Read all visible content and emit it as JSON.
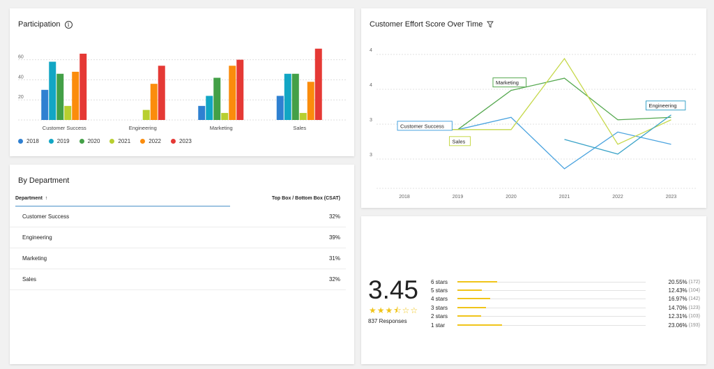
{
  "participation": {
    "title": "Participation",
    "info_icon": "info-icon",
    "chart_data": {
      "type": "bar",
      "categories": [
        "Customer Success",
        "Engineering",
        "Marketing",
        "Sales"
      ],
      "yticks": [
        20,
        40,
        60
      ],
      "ylim": [
        0,
        75
      ],
      "series": [
        {
          "name": "2018",
          "color": "#2f80d1",
          "values": [
            30,
            null,
            14,
            24
          ]
        },
        {
          "name": "2019",
          "color": "#12a6c4",
          "values": [
            58,
            null,
            24,
            46
          ]
        },
        {
          "name": "2020",
          "color": "#43a047",
          "values": [
            46,
            null,
            42,
            46
          ]
        },
        {
          "name": "2021",
          "color": "#b8cf2f",
          "values": [
            14,
            10,
            7,
            7
          ]
        },
        {
          "name": "2022",
          "color": "#fb8c0c",
          "values": [
            48,
            36,
            54,
            38
          ]
        },
        {
          "name": "2023",
          "color": "#e53935",
          "values": [
            66,
            54,
            60,
            71
          ]
        }
      ]
    }
  },
  "effort": {
    "title": "Customer Effort Score Over Time",
    "filter_icon": "filter-icon",
    "chart_data": {
      "type": "line",
      "x": [
        "2018",
        "2019",
        "2020",
        "2021",
        "2022",
        "2023"
      ],
      "yticks": [
        "4",
        "4",
        "3",
        "3"
      ],
      "series": [
        {
          "name": "Customer Success",
          "color": "#4aa3df",
          "values": [
            3.8,
            3.8,
            4.05,
            3.0,
            3.75,
            3.5
          ]
        },
        {
          "name": "Marketing",
          "color": "#55a84f",
          "values": [
            3.8,
            3.8,
            4.6,
            4.85,
            4.0,
            4.05
          ]
        },
        {
          "name": "Sales",
          "color": "#c6d84a",
          "values": [
            3.8,
            3.8,
            3.8,
            5.25,
            3.5,
            4.0
          ]
        },
        {
          "name": "Engineering",
          "color": "#3aa3c8",
          "values": [
            null,
            null,
            null,
            3.6,
            3.3,
            4.1
          ]
        }
      ]
    }
  },
  "department": {
    "title": "By Department",
    "col_department": "Department",
    "sort_icon": "↑",
    "col_metric": "Top Box / Bottom Box (CSAT)",
    "rows": [
      {
        "name": "Customer Success",
        "value": "32%"
      },
      {
        "name": "Engineering",
        "value": "39%"
      },
      {
        "name": "Marketing",
        "value": "31%"
      },
      {
        "name": "Sales",
        "value": "32%"
      }
    ]
  },
  "rating": {
    "score": "3.45",
    "stars": "★★★⯪☆☆",
    "star_color": "#f0c419",
    "responses": "837 Responses",
    "rows": [
      {
        "label": "6 stars",
        "fraction": 0.2055,
        "pct": "20.55%",
        "count": "(172)"
      },
      {
        "label": "5 stars",
        "fraction": 0.1243,
        "pct": "12.43%",
        "count": "(104)"
      },
      {
        "label": "4 stars",
        "fraction": 0.1697,
        "pct": "16.97%",
        "count": "(142)"
      },
      {
        "label": "3 stars",
        "fraction": 0.147,
        "pct": "14.70%",
        "count": "(123)"
      },
      {
        "label": "2 stars",
        "fraction": 0.1231,
        "pct": "12.31%",
        "count": "(103)"
      },
      {
        "label": "1 star",
        "fraction": 0.2306,
        "pct": "23.06%",
        "count": "(193)"
      }
    ]
  }
}
